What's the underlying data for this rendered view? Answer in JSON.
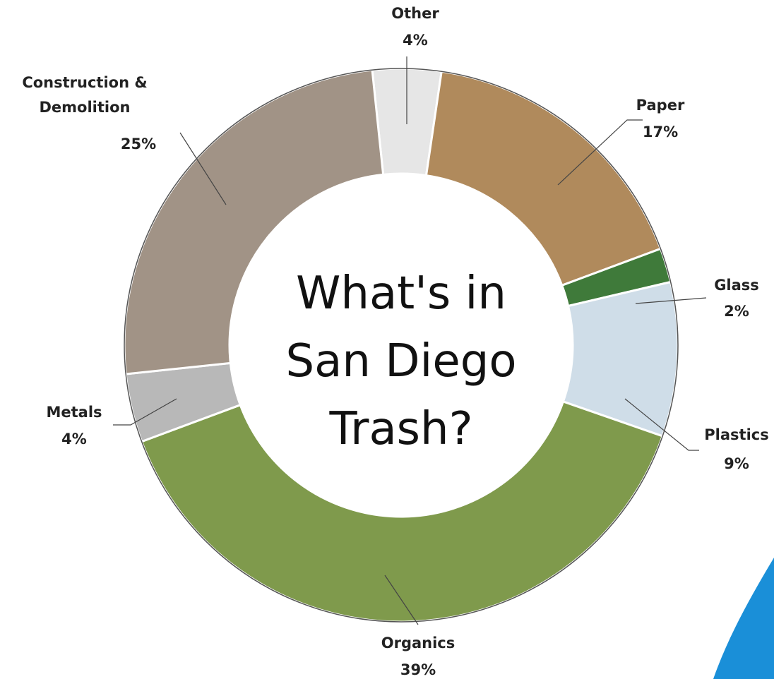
{
  "chart_data": {
    "type": "donut",
    "center_text": "What's in San Diego Trash?",
    "categories": [
      "Other",
      "Paper",
      "Glass",
      "Plastics",
      "Organics",
      "Metals",
      "Construction & Demolition"
    ],
    "values": [
      4,
      17,
      2,
      9,
      39,
      4,
      25
    ],
    "value_labels": [
      "4%",
      "17%",
      "2%",
      "9%",
      "39%",
      "4%",
      "25%"
    ],
    "colors": [
      "#e6e6e6",
      "#b08a5c",
      "#3f7a3a",
      "#cfdde8",
      "#7f9a4c",
      "#b8b8b8",
      "#a19386"
    ]
  }
}
